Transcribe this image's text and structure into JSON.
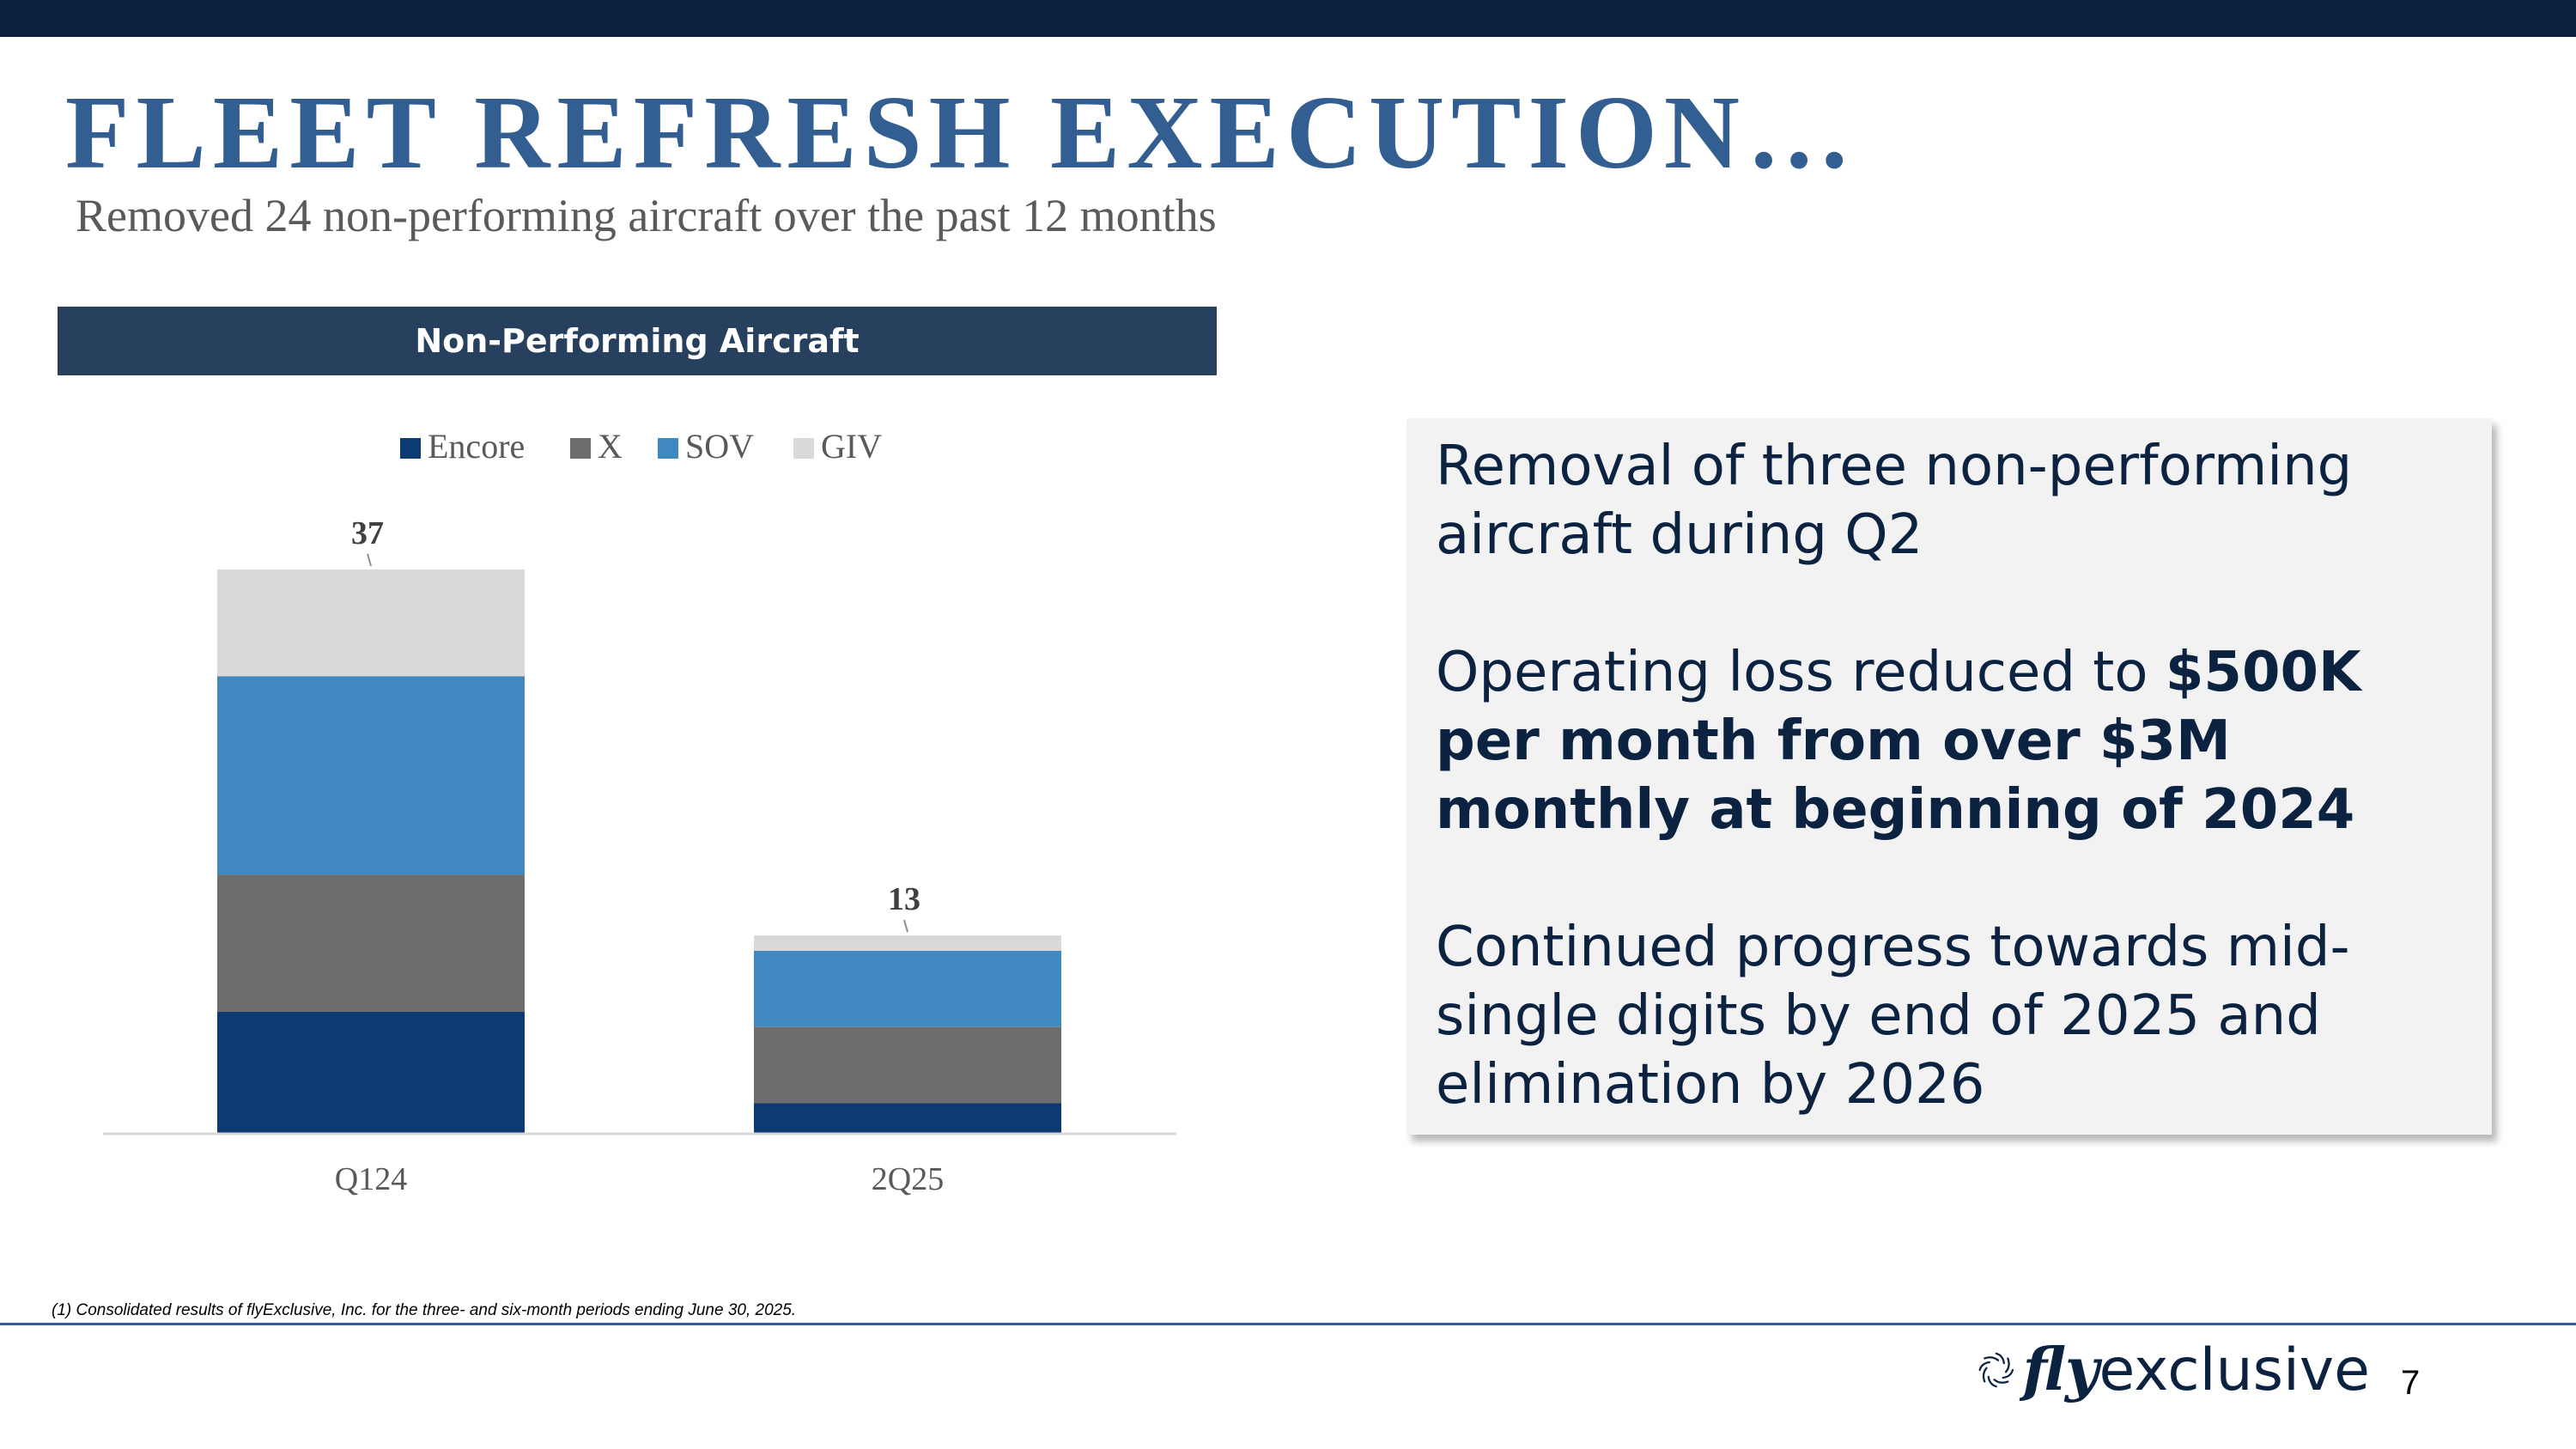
{
  "slide": {
    "title": "FLEET REFRESH EXECUTION…",
    "subtitle": "Removed 24 non-performing aircraft over the past 12 months",
    "chart_header": "Non-Performing Aircraft",
    "info": {
      "p1": "Removal of three non-performing aircraft during Q2",
      "p2_prefix": "Operating loss reduced to ",
      "p2_bold": "$500K per month from over $3M monthly at beginning of 2024",
      "p3": "Continued progress towards mid-single digits by end of 2025 and elimination by 2026"
    },
    "footnote": "(1) Consolidated results of flyExclusive, Inc. for the three- and six-month periods ending June 30, 2025.",
    "logo": {
      "fly": "fly",
      "rest": "exclusive"
    },
    "page_number": "7",
    "colors": {
      "navy": "#0b2240",
      "title_blue": "#325e91",
      "header_bar": "#26405e",
      "panel": "#f2f2f2"
    }
  },
  "chart_data": {
    "type": "bar",
    "stacked": true,
    "categories": [
      "Q124",
      "2Q25"
    ],
    "series": [
      {
        "name": "Encore",
        "color": "#0d3a70",
        "values": [
          8,
          2
        ]
      },
      {
        "name": "X",
        "color": "#6d6d6d",
        "values": [
          9,
          5
        ]
      },
      {
        "name": "SOV",
        "color": "#3f88c0",
        "values": [
          13,
          5
        ]
      },
      {
        "name": "GIV",
        "color": "#d9d9d9",
        "values": [
          7,
          1
        ]
      }
    ],
    "totals": [
      37,
      13
    ],
    "legend_position": "top",
    "grid": false
  }
}
